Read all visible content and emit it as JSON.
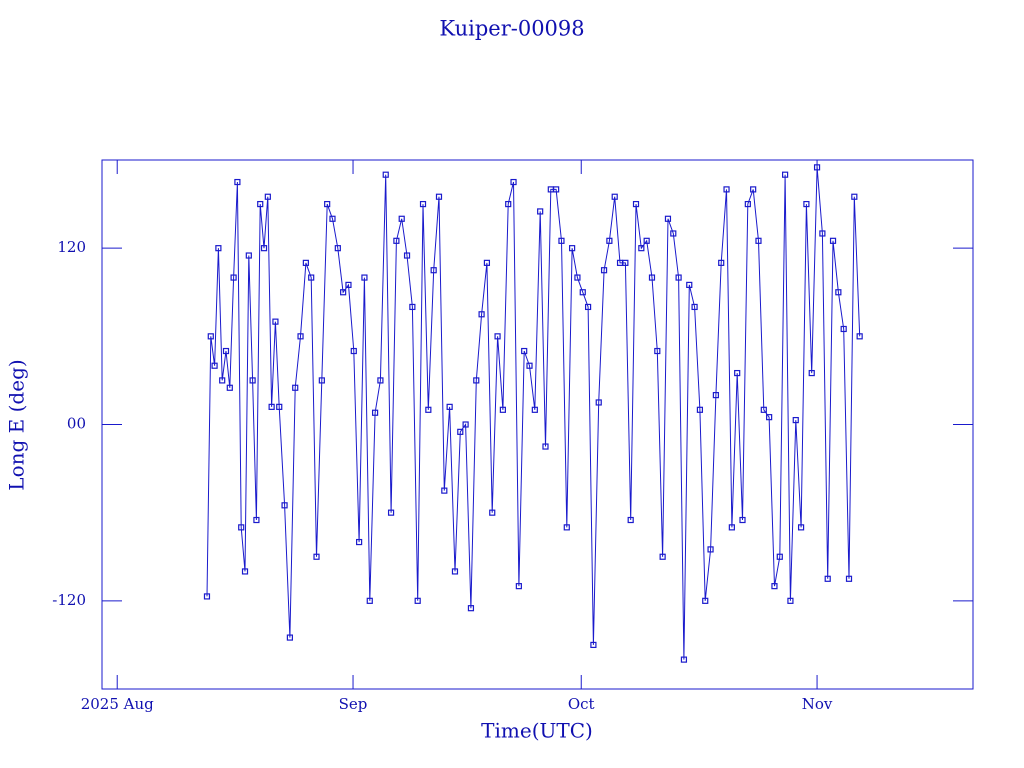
{
  "chart_data": {
    "type": "line",
    "title": "Kuiper-00098",
    "x_label": "Time(UTC)",
    "y_label": "Long E (deg)",
    "color": "#1a1acc",
    "xlim": [
      -2,
      112.5
    ],
    "ylim": [
      -180,
      180
    ],
    "xticks": [
      {
        "value": 0,
        "label": "2025 Aug"
      },
      {
        "value": 31,
        "label": "Sep"
      },
      {
        "value": 61,
        "label": "Oct"
      },
      {
        "value": 92,
        "label": "Nov"
      }
    ],
    "yticks": [
      -120,
      {
        "value": 0,
        "label": "00"
      },
      120
    ],
    "x": [
      11.8,
      12.3,
      12.8,
      13.3,
      13.8,
      14.3,
      14.8,
      15.3,
      15.8,
      16.3,
      16.8,
      17.3,
      17.8,
      18.3,
      18.8,
      19.3,
      19.8,
      20.3,
      20.8,
      21.3,
      22.0,
      22.7,
      23.4,
      24.1,
      24.8,
      25.5,
      26.2,
      26.9,
      27.6,
      28.3,
      29.0,
      29.7,
      30.4,
      31.1,
      31.8,
      32.5,
      33.2,
      33.9,
      34.6,
      35.3,
      36.0,
      36.7,
      37.4,
      38.1,
      38.8,
      39.5,
      40.2,
      40.9,
      41.6,
      42.3,
      43.0,
      43.7,
      44.4,
      45.1,
      45.8,
      46.5,
      47.2,
      47.9,
      48.6,
      49.3,
      50.0,
      50.7,
      51.4,
      52.1,
      52.8,
      53.5,
      54.2,
      54.9,
      55.6,
      56.3,
      57.0,
      57.7,
      58.4,
      59.1,
      59.8,
      60.5,
      61.2,
      61.9,
      62.6,
      63.3,
      64.0,
      64.7,
      65.4,
      66.1,
      66.8,
      67.5,
      68.2,
      68.9,
      69.6,
      70.3,
      71.0,
      71.7,
      72.4,
      73.1,
      73.8,
      74.5,
      75.2,
      75.9,
      76.6,
      77.3,
      78.0,
      78.7,
      79.4,
      80.1,
      80.8,
      81.5,
      82.2,
      82.9,
      83.6,
      84.3,
      85.0,
      85.7,
      86.4,
      87.1,
      87.8,
      88.5,
      89.2,
      89.9,
      90.6,
      91.3,
      92.0,
      92.7,
      93.4,
      94.1,
      94.8,
      95.5,
      96.2,
      96.9,
      97.6
    ],
    "values": [
      -117,
      60,
      40,
      120,
      30,
      50,
      25,
      100,
      165,
      -70,
      -100,
      115,
      30,
      -65,
      150,
      120,
      155,
      12,
      70,
      12,
      -55,
      -145,
      25,
      60,
      110,
      100,
      -90,
      30,
      150,
      140,
      120,
      90,
      95,
      50,
      -80,
      100,
      -120,
      8,
      30,
      170,
      -60,
      125,
      140,
      115,
      80,
      -120,
      150,
      10,
      105,
      155,
      -45,
      12,
      -100,
      -5,
      0,
      -125,
      30,
      75,
      110,
      -60,
      60,
      10,
      150,
      165,
      -110,
      50,
      40,
      10,
      145,
      -15,
      160,
      160,
      125,
      -70,
      120,
      100,
      90,
      80,
      -150,
      15,
      105,
      125,
      155,
      110,
      110,
      -65,
      150,
      120,
      125,
      100,
      50,
      -90,
      140,
      130,
      100,
      -160,
      95,
      80,
      10,
      -120,
      -85,
      20,
      110,
      160,
      -70,
      35,
      -65,
      150,
      160,
      125,
      10,
      5,
      -110,
      -90,
      170,
      -120,
      3,
      -70,
      150,
      35,
      175,
      130,
      -105,
      125,
      90,
      65,
      -105,
      155,
      60
    ]
  }
}
